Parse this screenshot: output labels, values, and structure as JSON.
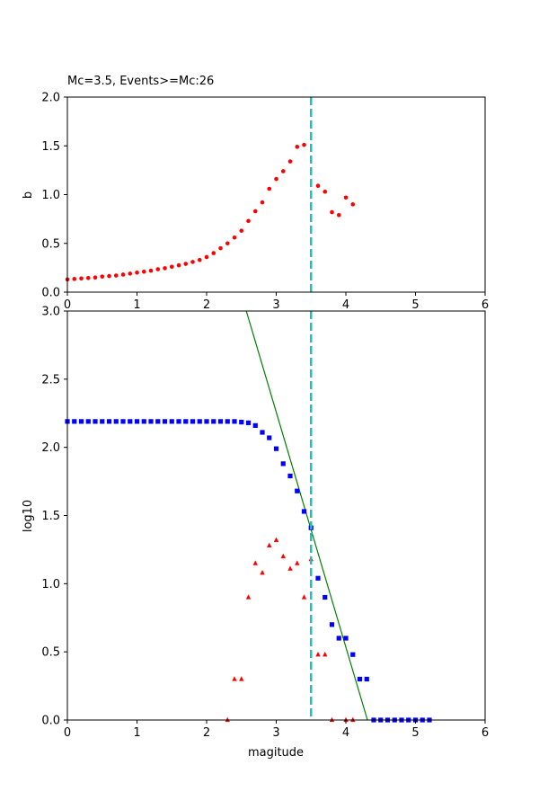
{
  "chart_data": [
    {
      "type": "scatter",
      "title": "Mc=3.5, Events>=Mc:26",
      "xlabel": "",
      "ylabel": "b",
      "xlim": [
        0,
        6
      ],
      "ylim": [
        0,
        2
      ],
      "xticks": [
        "0",
        "1",
        "2",
        "3",
        "4",
        "5",
        "6"
      ],
      "yticks": [
        "0.0",
        "0.5",
        "1.0",
        "1.5",
        "2.0"
      ],
      "grid": false,
      "series": [
        {
          "marker": "circle",
          "color": "#ff0000",
          "x": [
            0.0,
            0.1,
            0.2,
            0.3,
            0.4,
            0.5,
            0.6,
            0.7,
            0.8,
            0.9,
            1.0,
            1.1,
            1.2,
            1.3,
            1.4,
            1.5,
            1.6,
            1.7,
            1.8,
            1.9,
            2.0,
            2.1,
            2.2,
            2.3,
            2.4,
            2.5,
            2.6,
            2.7,
            2.8,
            2.9,
            3.0,
            3.1,
            3.2,
            3.3,
            3.4,
            3.6,
            3.7,
            3.8,
            3.9,
            4.0,
            4.1
          ],
          "y": [
            0.13,
            0.135,
            0.14,
            0.145,
            0.15,
            0.16,
            0.165,
            0.17,
            0.18,
            0.19,
            0.2,
            0.21,
            0.22,
            0.235,
            0.245,
            0.26,
            0.275,
            0.29,
            0.31,
            0.33,
            0.36,
            0.4,
            0.45,
            0.5,
            0.56,
            0.63,
            0.73,
            0.83,
            0.92,
            1.06,
            1.16,
            1.24,
            1.34,
            1.49,
            1.51,
            1.09,
            1.03,
            0.82,
            0.79,
            0.97,
            0.9
          ]
        }
      ],
      "vline": {
        "x": 3.5,
        "color": "#1fbfbf"
      }
    },
    {
      "type": "scatter",
      "title": "",
      "xlabel": "magitude",
      "ylabel": "log10",
      "xlim": [
        0,
        6
      ],
      "ylim": [
        0,
        3
      ],
      "xticks": [
        "0",
        "1",
        "2",
        "3",
        "4",
        "5",
        "6"
      ],
      "yticks": [
        "0.0",
        "0.5",
        "1.0",
        "1.5",
        "2.0",
        "2.5",
        "3.0"
      ],
      "grid": false,
      "series": [
        {
          "marker": "square",
          "color": "#0000ff",
          "x": [
            0.0,
            0.1,
            0.2,
            0.3,
            0.4,
            0.5,
            0.6,
            0.7,
            0.8,
            0.9,
            1.0,
            1.1,
            1.2,
            1.3,
            1.4,
            1.5,
            1.6,
            1.7,
            1.8,
            1.9,
            2.0,
            2.1,
            2.2,
            2.3,
            2.4,
            2.5,
            2.6,
            2.7,
            2.8,
            2.9,
            3.0,
            3.1,
            3.2,
            3.3,
            3.4,
            3.5,
            3.6,
            3.7,
            3.8,
            3.9,
            4.0,
            4.1,
            4.2,
            4.3,
            4.4,
            4.5,
            4.6,
            4.7,
            4.8,
            4.9,
            5.0,
            5.1,
            5.2
          ],
          "y": [
            2.19,
            2.19,
            2.19,
            2.19,
            2.19,
            2.19,
            2.19,
            2.19,
            2.19,
            2.19,
            2.19,
            2.19,
            2.19,
            2.19,
            2.19,
            2.19,
            2.19,
            2.19,
            2.19,
            2.19,
            2.19,
            2.19,
            2.19,
            2.19,
            2.19,
            2.185,
            2.18,
            2.16,
            2.11,
            2.07,
            1.99,
            1.88,
            1.79,
            1.68,
            1.53,
            1.41,
            1.04,
            0.9,
            0.7,
            0.6,
            0.6,
            0.48,
            0.3,
            0.3,
            0.0,
            0.0,
            0.0,
            0.0,
            0.0,
            0.0,
            0.0,
            0.0,
            0.0
          ]
        },
        {
          "marker": "triangle",
          "color": "#ff0000",
          "x": [
            2.3,
            2.4,
            2.5,
            2.6,
            2.7,
            2.8,
            2.9,
            3.0,
            3.1,
            3.2,
            3.3,
            3.4,
            3.5,
            3.6,
            3.7,
            3.8,
            4.0,
            4.1
          ],
          "y": [
            0.0,
            0.3,
            0.3,
            0.9,
            1.15,
            1.08,
            1.28,
            1.32,
            1.2,
            1.11,
            1.15,
            0.9,
            1.18,
            0.48,
            0.48,
            0.0,
            0.0,
            0.0
          ]
        }
      ],
      "fit_line": {
        "color": "#008000",
        "x": [
          2.57,
          4.31
        ],
        "y": [
          3.0,
          0.0
        ]
      },
      "vline": {
        "x": 3.5,
        "color": "#1fbfbf"
      }
    }
  ]
}
